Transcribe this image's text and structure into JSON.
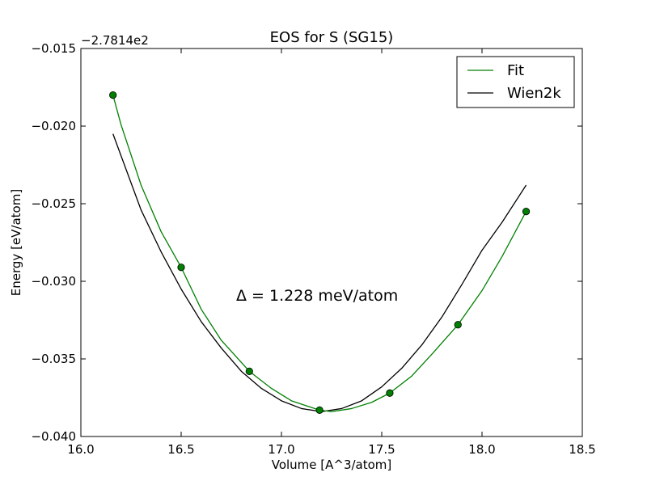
{
  "chart_data": {
    "type": "line",
    "title": "EOS for S (SG15)",
    "xlabel": "Volume [A^3/atom]",
    "ylabel": "Energy [eV/atom]",
    "y_offset_label": "−2.7814e2",
    "xlim": [
      16.0,
      18.5
    ],
    "ylim": [
      -0.04,
      -0.015
    ],
    "x_ticks": [
      16.0,
      16.5,
      17.0,
      17.5,
      18.0,
      18.5
    ],
    "x_tick_labels": [
      "16.0",
      "16.5",
      "17.0",
      "17.5",
      "18.0",
      "18.5"
    ],
    "y_ticks": [
      -0.04,
      -0.035,
      -0.03,
      -0.025,
      -0.02,
      -0.015
    ],
    "y_tick_labels": [
      "−0.040",
      "−0.035",
      "−0.030",
      "−0.025",
      "−0.020",
      "−0.015"
    ],
    "grid": false,
    "legend_position": "top-right",
    "annotation": "Δ = 1.228 meV/atom",
    "series": [
      {
        "name": "Fit",
        "kind": "line+markers",
        "color": "#008000",
        "marker_color": "#008000",
        "x": [
          16.16,
          16.2,
          16.3,
          16.4,
          16.5,
          16.6,
          16.7,
          16.84,
          16.95,
          17.05,
          17.19,
          17.25,
          17.35,
          17.45,
          17.54,
          17.65,
          17.75,
          17.88,
          18.0,
          18.1,
          18.22
        ],
        "y": [
          -0.018,
          -0.0199,
          -0.0238,
          -0.0268,
          -0.0291,
          -0.0318,
          -0.0338,
          -0.0358,
          -0.0369,
          -0.0377,
          -0.0383,
          -0.0384,
          -0.0382,
          -0.0378,
          -0.0372,
          -0.0361,
          -0.0347,
          -0.0328,
          -0.0306,
          -0.0284,
          -0.0255
        ],
        "points_x": [
          16.16,
          16.5,
          16.84,
          17.19,
          17.54,
          17.88,
          18.22
        ],
        "points_y": [
          -0.018,
          -0.0291,
          -0.0358,
          -0.0383,
          -0.0372,
          -0.0328,
          -0.0255
        ]
      },
      {
        "name": "Wien2k",
        "kind": "line",
        "color": "#000000",
        "x": [
          16.16,
          16.3,
          16.4,
          16.5,
          16.6,
          16.7,
          16.8,
          16.9,
          17.0,
          17.1,
          17.2,
          17.3,
          17.4,
          17.5,
          17.6,
          17.7,
          17.8,
          17.9,
          18.0,
          18.1,
          18.22
        ],
        "y": [
          -0.0205,
          -0.0254,
          -0.0281,
          -0.0305,
          -0.0326,
          -0.0343,
          -0.0358,
          -0.0369,
          -0.0377,
          -0.0382,
          -0.0384,
          -0.0382,
          -0.0377,
          -0.0368,
          -0.0356,
          -0.0341,
          -0.0323,
          -0.0302,
          -0.028,
          -0.0262,
          -0.0238
        ]
      }
    ]
  }
}
